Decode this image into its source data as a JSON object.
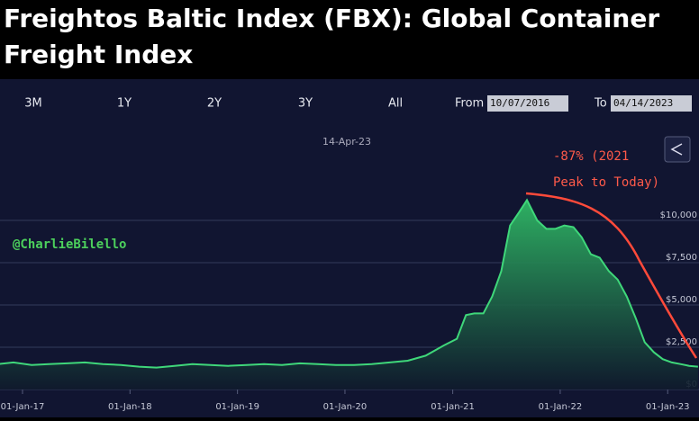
{
  "chart_data": {
    "type": "area",
    "title": "Freightos Baltic Index (FBX): Global Container Freight Index",
    "range_buttons": [
      "3M",
      "1Y",
      "2Y",
      "3Y",
      "All"
    ],
    "from_label": "From",
    "from_date": "10/07/2016",
    "to_label": "To",
    "to_date": "04/14/2023",
    "hover_date": "14-Apr-23",
    "annotation": [
      "-87% (2021",
      "Peak to Today)"
    ],
    "watermark": "@CharlieBilello",
    "x": [
      "2016-10-07",
      "2016-12-01",
      "2017-02-01",
      "2017-04-01",
      "2017-06-01",
      "2017-08-01",
      "2017-10-01",
      "2017-12-01",
      "2018-02-01",
      "2018-04-01",
      "2018-06-01",
      "2018-08-01",
      "2018-10-01",
      "2018-12-01",
      "2019-02-01",
      "2019-04-01",
      "2019-06-01",
      "2019-08-01",
      "2019-10-01",
      "2019-12-01",
      "2020-02-01",
      "2020-04-01",
      "2020-06-01",
      "2020-08-01",
      "2020-10-01",
      "2020-12-01",
      "2021-01-15",
      "2021-02-15",
      "2021-03-15",
      "2021-04-15",
      "2021-05-15",
      "2021-06-15",
      "2021-07-15",
      "2021-08-15",
      "2021-09-10",
      "2021-10-15",
      "2021-11-15",
      "2021-12-15",
      "2022-01-15",
      "2022-02-15",
      "2022-03-15",
      "2022-04-15",
      "2022-05-15",
      "2022-06-15",
      "2022-07-15",
      "2022-08-15",
      "2022-09-15",
      "2022-10-15",
      "2022-11-15",
      "2022-12-15",
      "2023-01-15",
      "2023-02-15",
      "2023-03-15",
      "2023-04-14"
    ],
    "series": [
      {
        "name": "FBX",
        "color": "#3fd77a",
        "values": [
          1500,
          1600,
          1450,
          1500,
          1550,
          1600,
          1500,
          1450,
          1350,
          1300,
          1400,
          1500,
          1450,
          1400,
          1450,
          1500,
          1450,
          1550,
          1500,
          1450,
          1450,
          1500,
          1600,
          1700,
          2000,
          2600,
          3000,
          4400,
          4500,
          4500,
          5500,
          7000,
          9700,
          10500,
          11200,
          10000,
          9500,
          9500,
          9700,
          9600,
          9000,
          8000,
          7800,
          7000,
          6500,
          5500,
          4200,
          2800,
          2200,
          1800,
          1600,
          1500,
          1400,
          1350
        ]
      }
    ],
    "xticks": [
      {
        "value": "2017-01-01",
        "label": "01-Jan-17"
      },
      {
        "value": "2018-01-01",
        "label": "01-Jan-18"
      },
      {
        "value": "2019-01-01",
        "label": "01-Jan-19"
      },
      {
        "value": "2020-01-01",
        "label": "01-Jan-20"
      },
      {
        "value": "2021-01-01",
        "label": "01-Jan-21"
      },
      {
        "value": "2022-01-01",
        "label": "01-Jan-22"
      },
      {
        "value": "2023-01-01",
        "label": "01-Jan-23"
      }
    ],
    "ylim": [
      0,
      12500
    ],
    "yticks": [
      {
        "value": 0,
        "label": "$0"
      },
      {
        "value": 2500,
        "label": "$2,500"
      },
      {
        "value": 5000,
        "label": "$5,000"
      },
      {
        "value": 7500,
        "label": "$7,500"
      },
      {
        "value": 10000,
        "label": "$10,000"
      }
    ],
    "grid": true
  }
}
